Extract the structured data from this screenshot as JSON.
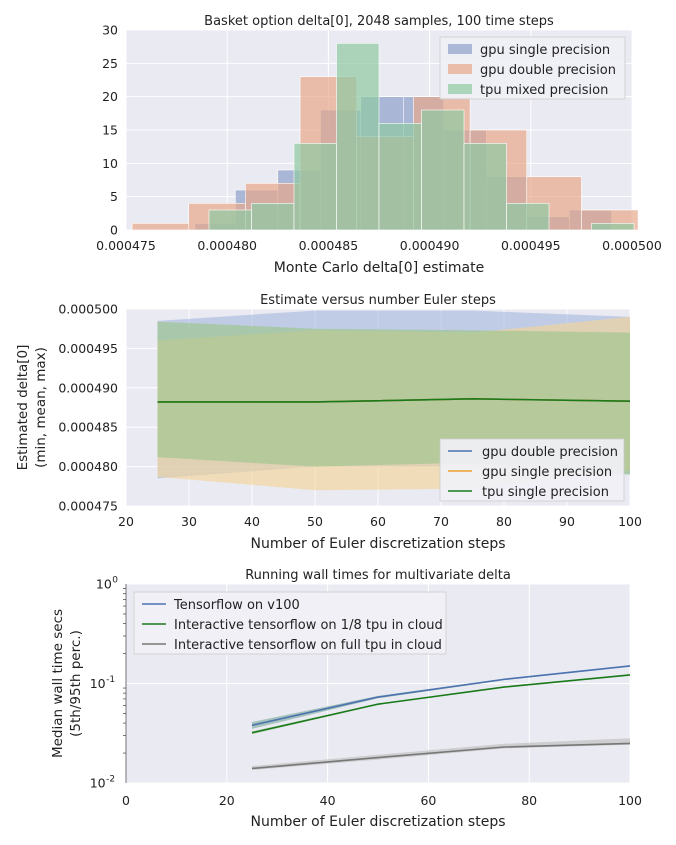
{
  "chart_data": [
    {
      "type": "histogram",
      "title": "Basket option delta[0], 2048 samples, 100 time steps",
      "xlabel": "Monte Carlo delta[0] estimate",
      "ylabel": "",
      "xlim": [
        0.000475,
        0.0005
      ],
      "ylim": [
        0,
        30
      ],
      "xticks": [
        "0.000475",
        "0.000480",
        "0.000485",
        "0.000490",
        "0.000495",
        "0.000500"
      ],
      "yticks": [
        "0",
        "5",
        "10",
        "15",
        "20",
        "25",
        "30"
      ],
      "grid": true,
      "legend_position": "top-right",
      "series": [
        {
          "name": "gpu single precision",
          "color": "#8da0cb",
          "bins": [
            {
              "x0": 0.0004784,
              "x1": 0.0004804,
              "count": 1
            },
            {
              "x0": 0.0004804,
              "x1": 0.0004825,
              "count": 6
            },
            {
              "x0": 0.0004825,
              "x1": 0.0004846,
              "count": 9
            },
            {
              "x0": 0.0004846,
              "x1": 0.0004866,
              "count": 18
            },
            {
              "x0": 0.0004866,
              "x1": 0.0004887,
              "count": 20
            },
            {
              "x0": 0.0004887,
              "x1": 0.0004907,
              "count": 20
            },
            {
              "x0": 0.0004907,
              "x1": 0.0004928,
              "count": 15
            },
            {
              "x0": 0.0004928,
              "x1": 0.0004948,
              "count": 8
            },
            {
              "x0": 0.0004948,
              "x1": 0.0004969,
              "count": 2
            },
            {
              "x0": 0.0004969,
              "x1": 0.000499,
              "count": 3
            }
          ]
        },
        {
          "name": "gpu double precision",
          "color": "#e8a88a",
          "bins": [
            {
              "x0": 0.0004753,
              "x1": 0.0004781,
              "count": 1
            },
            {
              "x0": 0.0004781,
              "x1": 0.0004809,
              "count": 4
            },
            {
              "x0": 0.0004809,
              "x1": 0.0004836,
              "count": 7
            },
            {
              "x0": 0.0004836,
              "x1": 0.0004864,
              "count": 23
            },
            {
              "x0": 0.0004864,
              "x1": 0.0004892,
              "count": 14
            },
            {
              "x0": 0.0004892,
              "x1": 0.000492,
              "count": 20
            },
            {
              "x0": 0.000492,
              "x1": 0.0004948,
              "count": 15
            },
            {
              "x0": 0.0004948,
              "x1": 0.0004975,
              "count": 8
            },
            {
              "x0": 0.0004975,
              "x1": 0.0005003,
              "count": 3
            }
          ]
        },
        {
          "name": "tpu mixed precision",
          "color": "#8fc9a3",
          "bins": [
            {
              "x0": 0.0004791,
              "x1": 0.0004812,
              "count": 3
            },
            {
              "x0": 0.0004812,
              "x1": 0.0004833,
              "count": 4
            },
            {
              "x0": 0.0004833,
              "x1": 0.0004854,
              "count": 13
            },
            {
              "x0": 0.0004854,
              "x1": 0.0004875,
              "count": 28
            },
            {
              "x0": 0.0004875,
              "x1": 0.0004896,
              "count": 16
            },
            {
              "x0": 0.0004896,
              "x1": 0.0004917,
              "count": 18
            },
            {
              "x0": 0.0004917,
              "x1": 0.0004938,
              "count": 13
            },
            {
              "x0": 0.0004938,
              "x1": 0.0004959,
              "count": 4
            },
            {
              "x0": 0.0004959,
              "x1": 0.000498,
              "count": 0
            },
            {
              "x0": 0.000498,
              "x1": 0.0005001,
              "count": 1
            }
          ]
        }
      ]
    },
    {
      "type": "line",
      "title": "Estimate versus number Euler steps",
      "xlabel": "Number of Euler discretization steps",
      "ylabel": "Estimated delta[0]",
      "ylabel2": "(min, mean, max)",
      "xlim": [
        20,
        100
      ],
      "ylim": [
        0.000475,
        0.0005
      ],
      "xticks": [
        "20",
        "30",
        "40",
        "50",
        "60",
        "70",
        "80",
        "90",
        "100"
      ],
      "yticks": [
        "0.000475",
        "0.000480",
        "0.000485",
        "0.000490",
        "0.000495",
        "0.000500"
      ],
      "grid": true,
      "legend_position": "lower-right",
      "x": [
        25,
        50,
        75,
        100
      ],
      "series": [
        {
          "name": "gpu double precision",
          "color": "#4c72b0",
          "band_color": "#a9bcdf",
          "mean": [
            0.0004882,
            0.0004882,
            0.0004886,
            0.0004883
          ],
          "min": [
            0.0004785,
            0.00048,
            0.00048,
            0.000479
          ],
          "max": [
            0.0004985,
            0.0004998,
            0.0004998,
            0.000499
          ]
        },
        {
          "name": "gpu single precision",
          "color": "#f0a030",
          "band_color": "#f2d49a",
          "mean": [
            0.0004882,
            0.0004882,
            0.0004886,
            0.0004883
          ],
          "min": [
            0.0004787,
            0.000477,
            0.0004772,
            0.0004795
          ],
          "max": [
            0.000496,
            0.0004973,
            0.000497,
            0.000499
          ]
        },
        {
          "name": "tpu single precision",
          "color": "#1a7a1a",
          "band_color": "#9cc48c",
          "mean": [
            0.0004882,
            0.0004882,
            0.0004886,
            0.0004883
          ],
          "min": [
            0.0004812,
            0.00048,
            0.0004805,
            0.000479
          ],
          "max": [
            0.0004984,
            0.0004975,
            0.0004973,
            0.000497
          ]
        }
      ]
    },
    {
      "type": "line",
      "title": "Running wall times for multivariate delta",
      "xlabel": "Number of Euler discretization steps",
      "ylabel": "Median wall time secs",
      "ylabel2": "(5th/95th perc.)",
      "xlim": [
        0,
        100
      ],
      "ylim": [
        0.01,
        1
      ],
      "yscale": "log",
      "xticks": [
        "0",
        "20",
        "40",
        "60",
        "80",
        "100"
      ],
      "yticks": [
        {
          "mant": "10",
          "exp": "0"
        },
        {
          "mant": "10",
          "exp": "-1"
        },
        {
          "mant": "10",
          "exp": "-2"
        }
      ],
      "grid": true,
      "legend_position": "top-left",
      "x": [
        25,
        50,
        75,
        100
      ],
      "series": [
        {
          "name": "Tensorflow on v100",
          "color": "#4c72b0",
          "band_color": "#8db4a8",
          "values": [
            0.038,
            0.073,
            0.11,
            0.15
          ],
          "p5": [
            0.035,
            0.071,
            0.108,
            0.148
          ],
          "p95": [
            0.041,
            0.075,
            0.112,
            0.152
          ]
        },
        {
          "name": "Interactive tensorflow on 1/8 tpu in cloud",
          "color": "#1a7a1a",
          "band_color": "#9cc48c",
          "values": [
            0.032,
            0.062,
            0.092,
            0.122
          ],
          "p5": [
            0.031,
            0.061,
            0.091,
            0.121
          ],
          "p95": [
            0.033,
            0.063,
            0.093,
            0.123
          ]
        },
        {
          "name": "Interactive tensorflow on full tpu in cloud",
          "color": "#777777",
          "band_color": "#c4c4c4",
          "values": [
            0.014,
            0.018,
            0.023,
            0.025
          ],
          "p5": [
            0.0135,
            0.0172,
            0.0222,
            0.0242
          ],
          "p95": [
            0.0148,
            0.0192,
            0.0248,
            0.0282
          ]
        }
      ]
    }
  ]
}
